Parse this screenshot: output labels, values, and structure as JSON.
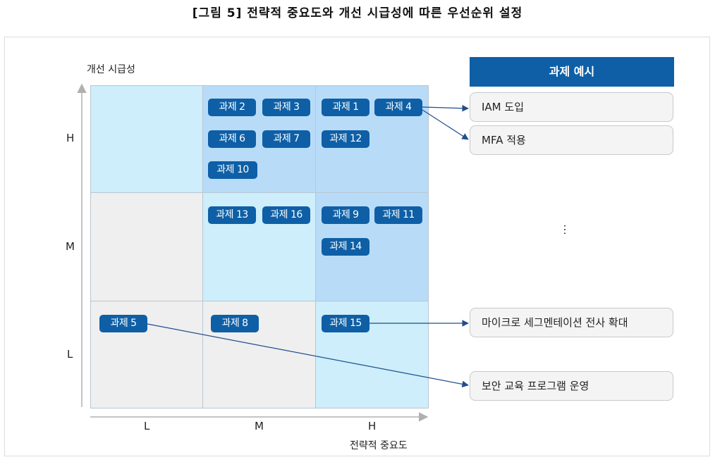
{
  "title": "[그림 5] 전략적 중요도와 개선 시급성에 따른 우선순위 설정",
  "axes": {
    "y_title": "개선 시급성",
    "x_title": "전략적 중요도",
    "y_ticks": [
      "H",
      "M",
      "L"
    ],
    "x_ticks": [
      "L",
      "M",
      "H"
    ]
  },
  "tasks": {
    "t1": "과제 1",
    "t2": "과제 2",
    "t3": "과제 3",
    "t4": "과제 4",
    "t5": "과제 5",
    "t6": "과제 6",
    "t7": "과제 7",
    "t8": "과제 8",
    "t9": "과제 9",
    "t10": "과제 10",
    "t11": "과제 11",
    "t12": "과제 12",
    "t13": "과제 13",
    "t14": "과제 14",
    "t15": "과제 15",
    "t16": "과제 16"
  },
  "examples": {
    "header": "과제 예시",
    "iam": "IAM 도입",
    "mfa": "MFA 적용",
    "ellipsis": "…",
    "microseg": "마이크로 세그멘테이션 전사 확대",
    "edu": "보안 교육 프로그램 운영"
  },
  "colors": {
    "task_fill": "#0e5fa6",
    "cell_light": "#cdeefa",
    "cell_mid": "#b8dcf8",
    "cell_gray": "#efefef",
    "arrow": "#1f4e8c"
  }
}
